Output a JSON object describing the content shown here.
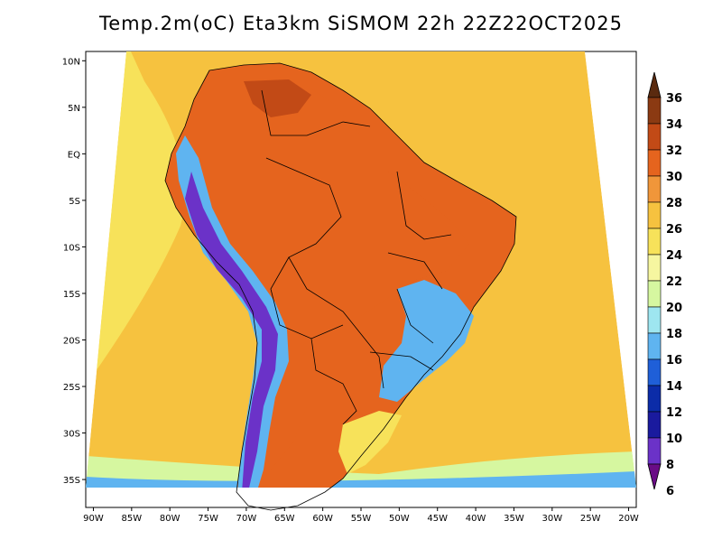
{
  "title": "Temp.2m(oC) Eta3km SiSMOM 22h 22Z22OCT2025",
  "map": {
    "lat_labels": [
      "10N",
      "5N",
      "EQ",
      "5S",
      "10S",
      "15S",
      "20S",
      "25S",
      "30S",
      "35S"
    ],
    "lat_values": [
      10,
      5,
      0,
      -5,
      -10,
      -15,
      -20,
      -25,
      -30,
      -35
    ],
    "lon_labels": [
      "90W",
      "85W",
      "80W",
      "75W",
      "70W",
      "65W",
      "60W",
      "55W",
      "50W",
      "45W",
      "40W",
      "35W",
      "30W",
      "25W",
      "20W"
    ],
    "lon_values": [
      -90,
      -85,
      -80,
      -75,
      -70,
      -65,
      -60,
      -55,
      -50,
      -45,
      -40,
      -35,
      -30,
      -25,
      -20
    ],
    "lat_range": [
      -38,
      11
    ],
    "lon_range": [
      -91,
      -19
    ]
  },
  "colorbar": {
    "labels": [
      "36",
      "34",
      "32",
      "30",
      "28",
      "26",
      "24",
      "22",
      "20",
      "18",
      "16",
      "14",
      "12",
      "10",
      "8",
      "6"
    ],
    "values": [
      36,
      34,
      32,
      30,
      28,
      26,
      24,
      22,
      20,
      18,
      16,
      14,
      12,
      10,
      8,
      6
    ],
    "colors": [
      "#5a2a0f",
      "#8b3a12",
      "#c24a16",
      "#e5641e",
      "#f0963a",
      "#f6c23f",
      "#f7e25a",
      "#f6f6a0",
      "#d6f7a0",
      "#9ee6f0",
      "#5fb4f0",
      "#1f5fd8",
      "#0b2ca8",
      "#1a1a9e",
      "#6b32c8",
      "#6a0c86"
    ]
  },
  "palette": {
    "ocean_warm": "#f6c23f",
    "ocean_mid": "#f7e25a",
    "ocean_cool": "#d6f7a0",
    "land_hot": "#e5641e",
    "land_very_hot": "#c24a16",
    "andes_cold": "#5fb4f0",
    "andes_very_cold": "#6b32c8",
    "border": "#000000"
  }
}
